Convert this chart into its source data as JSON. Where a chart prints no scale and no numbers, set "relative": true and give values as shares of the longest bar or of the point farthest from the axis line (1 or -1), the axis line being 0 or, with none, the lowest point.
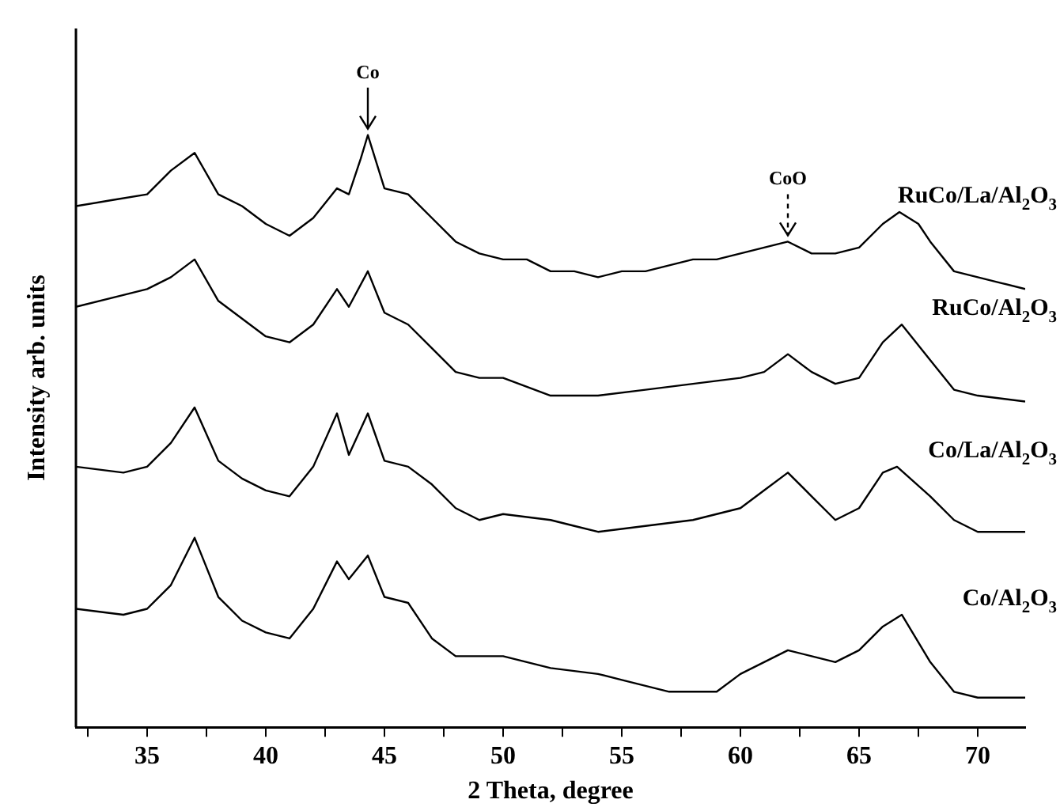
{
  "chart_data": {
    "type": "line",
    "relative": true,
    "xlabel": "2 Theta, degree",
    "ylabel": "Intensity arb. units",
    "xlim": [
      32,
      72
    ],
    "xticks": [
      {
        "value": 32.5,
        "label": null
      },
      35,
      {
        "value": 37.5,
        "label": null
      },
      40,
      {
        "value": 42.5,
        "label": null
      },
      45,
      {
        "value": 47.5,
        "label": null
      },
      50,
      {
        "value": 52.5,
        "label": null
      },
      55,
      {
        "value": 57.5,
        "label": null
      },
      60,
      {
        "value": 62.5,
        "label": null
      },
      65,
      {
        "value": 67.5,
        "label": null
      },
      70
    ],
    "legend": false,
    "grid": false,
    "annotations": [
      {
        "text": "Co",
        "x": 44.3,
        "y": 1.0
      },
      {
        "text": "CoO",
        "x": 62,
        "y": 0.82
      }
    ],
    "series": [
      {
        "name": "RuCo/La/Al$_{2}$O$_{3}$",
        "color": "#000000",
        "x": [
          32,
          33.5,
          35,
          36,
          37,
          38,
          39,
          40,
          41,
          42,
          43,
          43.5,
          44,
          44.3,
          45,
          46,
          47,
          48,
          49,
          50,
          51,
          52,
          53,
          54,
          55,
          56,
          57,
          58,
          59,
          60,
          61,
          62,
          63,
          64,
          65,
          66,
          66.7,
          67.5,
          68,
          69,
          70,
          71,
          72
        ],
        "values": [
          0.88,
          0.89,
          0.9,
          0.94,
          0.97,
          0.9,
          0.88,
          0.85,
          0.83,
          0.86,
          0.91,
          0.9,
          0.96,
          1.0,
          0.91,
          0.9,
          0.86,
          0.82,
          0.8,
          0.79,
          0.79,
          0.77,
          0.77,
          0.76,
          0.77,
          0.77,
          0.78,
          0.79,
          0.79,
          0.8,
          0.81,
          0.82,
          0.8,
          0.8,
          0.81,
          0.85,
          0.87,
          0.85,
          0.82,
          0.77,
          0.76,
          0.75,
          0.74
        ]
      },
      {
        "name": "RuCo/Al$_{2}$O$_{3}$",
        "color": "#000000",
        "x": [
          32,
          34,
          35,
          36,
          37,
          38,
          39,
          40,
          41,
          42,
          43,
          43.5,
          44.3,
          45,
          46,
          47,
          48,
          49,
          50,
          52,
          54,
          56,
          58,
          60,
          61,
          62,
          63,
          64,
          65,
          66,
          66.8,
          68,
          69,
          70,
          72
        ],
        "values": [
          0.71,
          0.73,
          0.74,
          0.76,
          0.79,
          0.72,
          0.69,
          0.66,
          0.65,
          0.68,
          0.74,
          0.71,
          0.77,
          0.7,
          0.68,
          0.64,
          0.6,
          0.59,
          0.59,
          0.56,
          0.56,
          0.57,
          0.58,
          0.59,
          0.6,
          0.63,
          0.6,
          0.58,
          0.59,
          0.65,
          0.68,
          0.62,
          0.57,
          0.56,
          0.55
        ]
      },
      {
        "name": "Co/La/Al$_{2}$O$_{3}$",
        "color": "#000000",
        "x": [
          32,
          34,
          35,
          36,
          37,
          38,
          39,
          40,
          41,
          42,
          43,
          43.5,
          44.3,
          45,
          46,
          47,
          48,
          49,
          50,
          52,
          53,
          54,
          56,
          58,
          60,
          61,
          62,
          63,
          64,
          65,
          66,
          66.6,
          68,
          69,
          70,
          72
        ],
        "values": [
          0.44,
          0.43,
          0.44,
          0.48,
          0.54,
          0.45,
          0.42,
          0.4,
          0.39,
          0.44,
          0.53,
          0.46,
          0.53,
          0.45,
          0.44,
          0.41,
          0.37,
          0.35,
          0.36,
          0.35,
          0.34,
          0.33,
          0.34,
          0.35,
          0.37,
          0.4,
          0.43,
          0.39,
          0.35,
          0.37,
          0.43,
          0.44,
          0.39,
          0.35,
          0.33,
          0.33
        ]
      },
      {
        "name": "Co/Al$_{2}$O$_{3}$",
        "color": "#000000",
        "x": [
          32,
          34,
          35,
          36,
          37,
          38,
          39,
          40,
          41,
          42,
          43,
          43.5,
          44.3,
          45,
          46,
          47,
          48,
          49,
          50,
          51,
          52,
          54,
          55,
          56,
          57,
          58,
          59,
          60,
          61,
          62,
          63,
          64,
          65,
          66,
          66.8,
          68,
          69,
          70,
          71,
          72
        ],
        "values": [
          0.2,
          0.19,
          0.2,
          0.24,
          0.32,
          0.22,
          0.18,
          0.16,
          0.15,
          0.2,
          0.28,
          0.25,
          0.29,
          0.22,
          0.21,
          0.15,
          0.12,
          0.12,
          0.12,
          0.11,
          0.1,
          0.09,
          0.08,
          0.07,
          0.06,
          0.06,
          0.06,
          0.09,
          0.11,
          0.13,
          0.12,
          0.11,
          0.13,
          0.17,
          0.19,
          0.11,
          0.06,
          0.05,
          0.05,
          0.05
        ]
      }
    ]
  }
}
